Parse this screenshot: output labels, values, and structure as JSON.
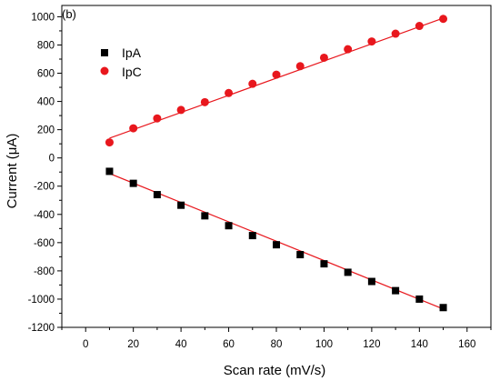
{
  "chart_data": {
    "type": "scatter",
    "panel_label": "(b)",
    "xlabel": "Scan rate (mV/s)",
    "ylabel": "Current (μA)",
    "xlim": [
      -10,
      170
    ],
    "ylim": [
      -1200,
      1080
    ],
    "x_ticks": [
      0,
      20,
      40,
      60,
      80,
      100,
      120,
      140,
      160
    ],
    "y_ticks": [
      -1200,
      -1000,
      -800,
      -600,
      -400,
      -200,
      0,
      200,
      400,
      600,
      800,
      1000
    ],
    "grid": false,
    "legend_position": "top-left",
    "series": [
      {
        "name": "IpA",
        "marker": "square",
        "color": "#000000",
        "x": [
          10,
          20,
          30,
          40,
          50,
          60,
          70,
          80,
          90,
          100,
          110,
          120,
          130,
          140,
          150
        ],
        "y": [
          -95,
          -180,
          -260,
          -335,
          -410,
          -480,
          -550,
          -615,
          -685,
          -750,
          -810,
          -875,
          -940,
          -1000,
          -1060
        ],
        "fit_line": {
          "color": "#e8171d",
          "x": [
            10,
            150
          ],
          "y": [
            -110,
            -1070
          ]
        }
      },
      {
        "name": "IpC",
        "marker": "circle",
        "color": "#e8171d",
        "x": [
          10,
          20,
          30,
          40,
          50,
          60,
          70,
          80,
          90,
          100,
          110,
          120,
          130,
          140,
          150
        ],
        "y": [
          110,
          210,
          280,
          340,
          395,
          460,
          525,
          590,
          650,
          710,
          770,
          825,
          880,
          935,
          985
        ],
        "fit_line": {
          "color": "#e8171d",
          "x": [
            10,
            150
          ],
          "y": [
            140,
            990
          ]
        }
      }
    ]
  }
}
